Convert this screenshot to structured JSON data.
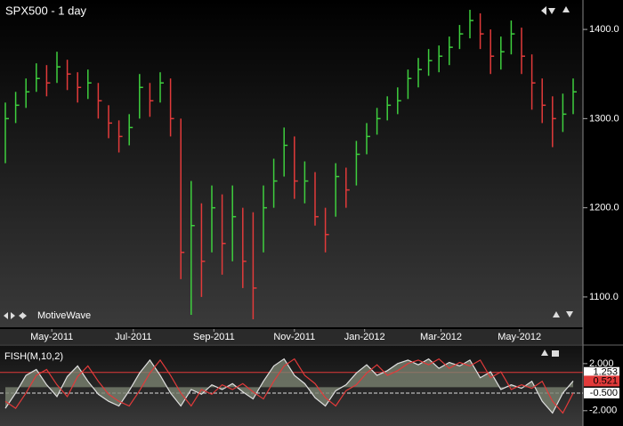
{
  "chart_data": [
    {
      "type": "ohlc",
      "title": "SPX500 - 1 day",
      "annotation": "MotiveWave",
      "up_color": "#3ecf3e",
      "down_color": "#e23a3a",
      "close": [
        1300,
        1315,
        1330,
        1345,
        1340,
        1358,
        1350,
        1335,
        1340,
        1320,
        1295,
        1280,
        1290,
        1335,
        1320,
        1340,
        1300,
        1150,
        1180,
        1140,
        1200,
        1160,
        1190,
        1140,
        1110,
        1200,
        1230,
        1270,
        1230,
        1230,
        1190,
        1170,
        1235,
        1220,
        1260,
        1280,
        1300,
        1315,
        1320,
        1345,
        1355,
        1365,
        1370,
        1380,
        1395,
        1410,
        1395,
        1370,
        1375,
        1395,
        1370,
        1340,
        1315,
        1300,
        1305,
        1330
      ],
      "high": [
        1318,
        1330,
        1345,
        1362,
        1360,
        1375,
        1366,
        1352,
        1355,
        1340,
        1315,
        1298,
        1305,
        1350,
        1340,
        1352,
        1345,
        1300,
        1230,
        1205,
        1225,
        1215,
        1225,
        1200,
        1195,
        1225,
        1255,
        1290,
        1280,
        1252,
        1240,
        1200,
        1250,
        1245,
        1275,
        1295,
        1312,
        1325,
        1335,
        1355,
        1368,
        1378,
        1382,
        1392,
        1405,
        1422,
        1418,
        1400,
        1392,
        1410,
        1402,
        1372,
        1345,
        1325,
        1328,
        1345
      ],
      "low": [
        1250,
        1295,
        1312,
        1330,
        1325,
        1340,
        1332,
        1318,
        1322,
        1300,
        1278,
        1262,
        1270,
        1300,
        1302,
        1318,
        1280,
        1120,
        1080,
        1100,
        1150,
        1125,
        1140,
        1110,
        1075,
        1150,
        1200,
        1235,
        1210,
        1205,
        1180,
        1150,
        1190,
        1200,
        1225,
        1260,
        1282,
        1298,
        1305,
        1322,
        1335,
        1348,
        1352,
        1360,
        1378,
        1390,
        1378,
        1350,
        1355,
        1372,
        1350,
        1310,
        1295,
        1268,
        1285,
        1305
      ],
      "ylim": [
        1066,
        1433
      ],
      "yticks": [
        {
          "value": 1100,
          "label": "1100.0"
        },
        {
          "value": 1200,
          "label": "1200.0"
        },
        {
          "value": 1300,
          "label": "1300.0"
        },
        {
          "value": 1400,
          "label": "1400.0"
        }
      ],
      "xticks": [
        {
          "value": 4.5,
          "label": "May-2011"
        },
        {
          "value": 12.4,
          "label": "Jul-2011"
        },
        {
          "value": 20.2,
          "label": "Sep-2011"
        },
        {
          "value": 28,
          "label": "Nov-2011"
        },
        {
          "value": 34.8,
          "label": "Jan-2012"
        },
        {
          "value": 42.2,
          "label": "Mar-2012"
        },
        {
          "value": 49.8,
          "label": "May-2012"
        }
      ]
    },
    {
      "type": "line",
      "title": "FISH(M,10,2)",
      "series": [
        {
          "color": "#e0e0e0",
          "fill": "#7a8270",
          "values": [
            -1.8,
            -0.5,
            1.0,
            1.5,
            0.2,
            -0.8,
            0.9,
            1.8,
            0.5,
            -0.6,
            -1.2,
            -1.6,
            -0.3,
            1.2,
            2.3,
            1.0,
            -0.5,
            -1.6,
            -0.2,
            -0.6,
            0.2,
            -0.2,
            0.3,
            -0.4,
            -1.0,
            0.5,
            1.8,
            2.4,
            1.0,
            0.3,
            -0.9,
            -1.6,
            -0.3,
            0.2,
            1.2,
            1.9,
            1.0,
            1.4,
            2.0,
            2.3,
            1.9,
            2.4,
            1.6,
            2.1,
            1.8,
            2.3,
            0.8,
            1.3,
            -0.2,
            0.2,
            -0.1,
            0.5,
            -1.2,
            -2.2,
            -0.5,
            0.521
          ]
        },
        {
          "color": "#e23a3a",
          "values": [
            -1.2,
            -1.8,
            -0.5,
            1.0,
            1.5,
            0.2,
            -0.8,
            0.9,
            1.8,
            0.5,
            -0.6,
            -1.2,
            -1.6,
            -0.3,
            1.2,
            2.3,
            1.0,
            -0.5,
            -1.6,
            -0.2,
            -0.6,
            0.2,
            -0.2,
            0.3,
            -0.4,
            -1.0,
            0.5,
            1.8,
            2.4,
            1.0,
            0.3,
            -0.9,
            -1.6,
            -0.3,
            0.2,
            1.2,
            1.9,
            1.0,
            1.4,
            2.0,
            2.3,
            1.9,
            2.4,
            1.6,
            2.1,
            1.8,
            2.3,
            0.8,
            1.3,
            -0.2,
            0.2,
            -0.1,
            0.5,
            -1.2,
            -2.2,
            -0.5
          ]
        }
      ],
      "ylim": [
        -3.3,
        3.5
      ],
      "yticks": [
        {
          "value": 2,
          "label": "2.000"
        },
        {
          "value": -2,
          "label": "-2.000"
        }
      ],
      "markers": [
        {
          "value": 1.253,
          "label": "1.253",
          "color": "#ffffff",
          "line_color": "#e23a3a"
        },
        {
          "value": 0.521,
          "label": "0.521",
          "color": "#e23a3a"
        },
        {
          "value": -0.5,
          "label": "-0.500",
          "color": "#ffffff",
          "line_color": "#dddddd"
        }
      ]
    }
  ]
}
